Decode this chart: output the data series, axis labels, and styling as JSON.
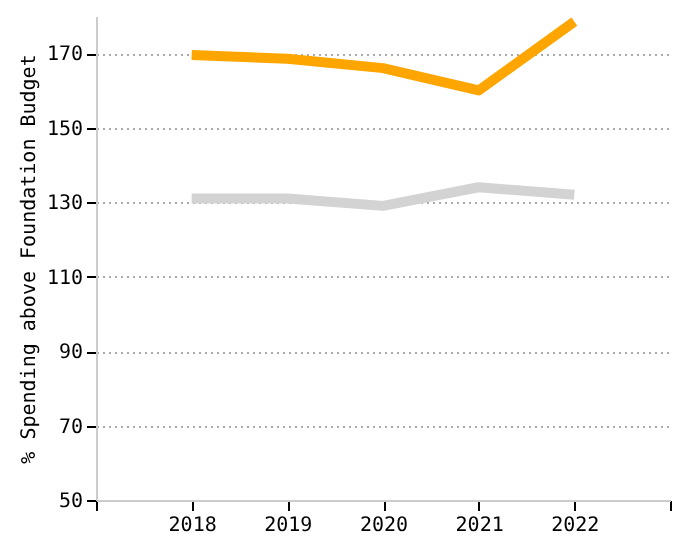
{
  "chart_data": {
    "type": "line",
    "ylabel": "% Spending above Foundation Budget",
    "x": [
      2018,
      2019,
      2020,
      2021,
      2022
    ],
    "series": [
      {
        "color": "#ffa500",
        "values": [
          169.5,
          168.5,
          166,
          160,
          178.5
        ]
      },
      {
        "color": "#d3d3d3",
        "values": [
          131,
          131,
          129,
          134,
          132
        ]
      }
    ],
    "xlim": [
      2017,
      2023
    ],
    "xticks": [
      {
        "value": 2017,
        "label": null
      },
      2018,
      2019,
      2020,
      2021,
      2022,
      {
        "value": 2023,
        "label": null
      }
    ],
    "ylim": [
      50,
      180
    ],
    "yticks": [
      50,
      70,
      90,
      110,
      130,
      150,
      170
    ],
    "grid": "y",
    "legend": false,
    "marker": "none",
    "line_style": "solid"
  }
}
